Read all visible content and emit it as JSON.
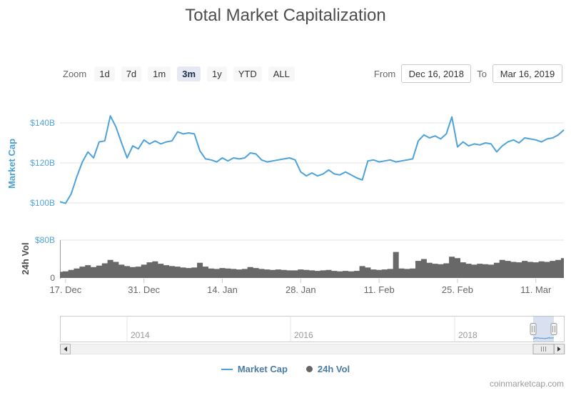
{
  "title": "Total Market Capitalization",
  "watermark": "coinmarketcap.com",
  "toolbar": {
    "zoom_label": "Zoom",
    "zoom_buttons": [
      {
        "label": "1d",
        "selected": false
      },
      {
        "label": "7d",
        "selected": false
      },
      {
        "label": "1m",
        "selected": false
      },
      {
        "label": "3m",
        "selected": true
      },
      {
        "label": "1y",
        "selected": false
      },
      {
        "label": "YTD",
        "selected": false
      },
      {
        "label": "ALL",
        "selected": false
      }
    ],
    "from_label": "From",
    "from_value": "Dec 16, 2018",
    "to_label": "To",
    "to_value": "Mar 16, 2019"
  },
  "legend": [
    {
      "name": "Market Cap",
      "marker": "line",
      "color": "#4da2da"
    },
    {
      "name": "24h Vol",
      "marker": "circle",
      "color": "#666666"
    }
  ],
  "navigator": {
    "year_labels": [
      "2014",
      "2016",
      "2018"
    ],
    "selection_start": "Dec 16, 2018",
    "selection_end": "Mar 16, 2019"
  },
  "colors": {
    "line_blue": "#4da2da",
    "axis_label_blue": "#55a5d9",
    "axis_title_blue": "#4ba0d4",
    "volume_gray": "#686868",
    "gridline": "#e6e6e6",
    "tick_gray": "#cccccc",
    "text_gray": "#666666",
    "axis_title_dark": "#4d4d4d",
    "legend_text": "#4a7ba6",
    "nav_mask": "rgba(102,133,194,0.25)",
    "nav_outline": "#cccccc",
    "scrollbar_track": "#f2f2f2",
    "scrollbar_button": "#ebebeb",
    "scrollbar_border": "#b8b8b8",
    "year_label_gray": "#999999"
  },
  "chart_data": [
    {
      "type": "line",
      "name": "Market Cap",
      "title": "Total Market Capitalization",
      "ylabel": "Market Cap",
      "unit": "USD billions",
      "start_date": "Dec 16, 2018",
      "end_date": "Mar 16, 2019",
      "interval": "1 day",
      "ylim": [
        96,
        148
      ],
      "grid": true,
      "yticks": [
        {
          "value": 100,
          "label": "$100B"
        },
        {
          "value": 120,
          "label": "$120B"
        },
        {
          "value": 140,
          "label": "$140B"
        }
      ],
      "xticks": [
        {
          "day": 1,
          "label": "17. Dec"
        },
        {
          "day": 15,
          "label": "31. Dec"
        },
        {
          "day": 29,
          "label": "14. Jan"
        },
        {
          "day": 43,
          "label": "28. Jan"
        },
        {
          "day": 57,
          "label": "11. Feb"
        },
        {
          "day": 71,
          "label": "25. Feb"
        },
        {
          "day": 85,
          "label": "11. Mar"
        }
      ],
      "values": [
        100.6,
        99.8,
        104.5,
        113,
        120.5,
        125.5,
        122.5,
        130.5,
        131,
        143.5,
        138,
        130,
        122.5,
        128.5,
        127,
        131.5,
        129.5,
        131,
        129.5,
        130.5,
        131,
        135.5,
        134.5,
        135,
        134.5,
        126,
        122,
        121.5,
        120.5,
        122.5,
        121,
        122.5,
        122,
        122.5,
        125,
        124.5,
        121.5,
        120.5,
        121,
        121.5,
        122,
        122.5,
        121.5,
        115.5,
        113.5,
        115,
        113.5,
        114.5,
        116.5,
        114.5,
        114,
        115.5,
        114,
        112.5,
        111.5,
        121,
        121.5,
        120.5,
        121,
        121.5,
        120.5,
        121,
        121.5,
        122,
        131,
        134,
        132.5,
        133.5,
        132,
        134.5,
        143,
        128,
        130.5,
        128.5,
        129.5,
        129,
        130,
        129.5,
        125.5,
        128.5,
        130.5,
        131.5,
        130,
        132.5,
        132,
        131.5,
        130.5,
        132,
        132.5,
        134,
        136.5
      ]
    },
    {
      "type": "bar",
      "name": "24h Vol",
      "ylabel": "24h Vol",
      "unit": "USD billions",
      "start_date": "Dec 16, 2018",
      "end_date": "Mar 16, 2019",
      "interval": "1 day",
      "ylim": [
        0,
        80
      ],
      "grid": true,
      "yticks": [
        {
          "value": 0,
          "label": "0"
        },
        {
          "value": 80,
          "label": "$80B"
        }
      ],
      "values": [
        13,
        14,
        17,
        20,
        24,
        27,
        23,
        26,
        31,
        38,
        34,
        28,
        25,
        23,
        24,
        28,
        33,
        35,
        30,
        27,
        25,
        24,
        22,
        21,
        22,
        32,
        24,
        20,
        19,
        21,
        20,
        19,
        18,
        19,
        23,
        21,
        19,
        18,
        17,
        18,
        17,
        16,
        16,
        18,
        17,
        16,
        15,
        16,
        17,
        15,
        14,
        15,
        14,
        15,
        25,
        22,
        18,
        17,
        18,
        19,
        55,
        20,
        19,
        20,
        36,
        40,
        32,
        30,
        29,
        31,
        45,
        42,
        33,
        30,
        28,
        30,
        29,
        28,
        32,
        38,
        36,
        34,
        33,
        36,
        34,
        33,
        35,
        34,
        36,
        38,
        42
      ]
    }
  ]
}
